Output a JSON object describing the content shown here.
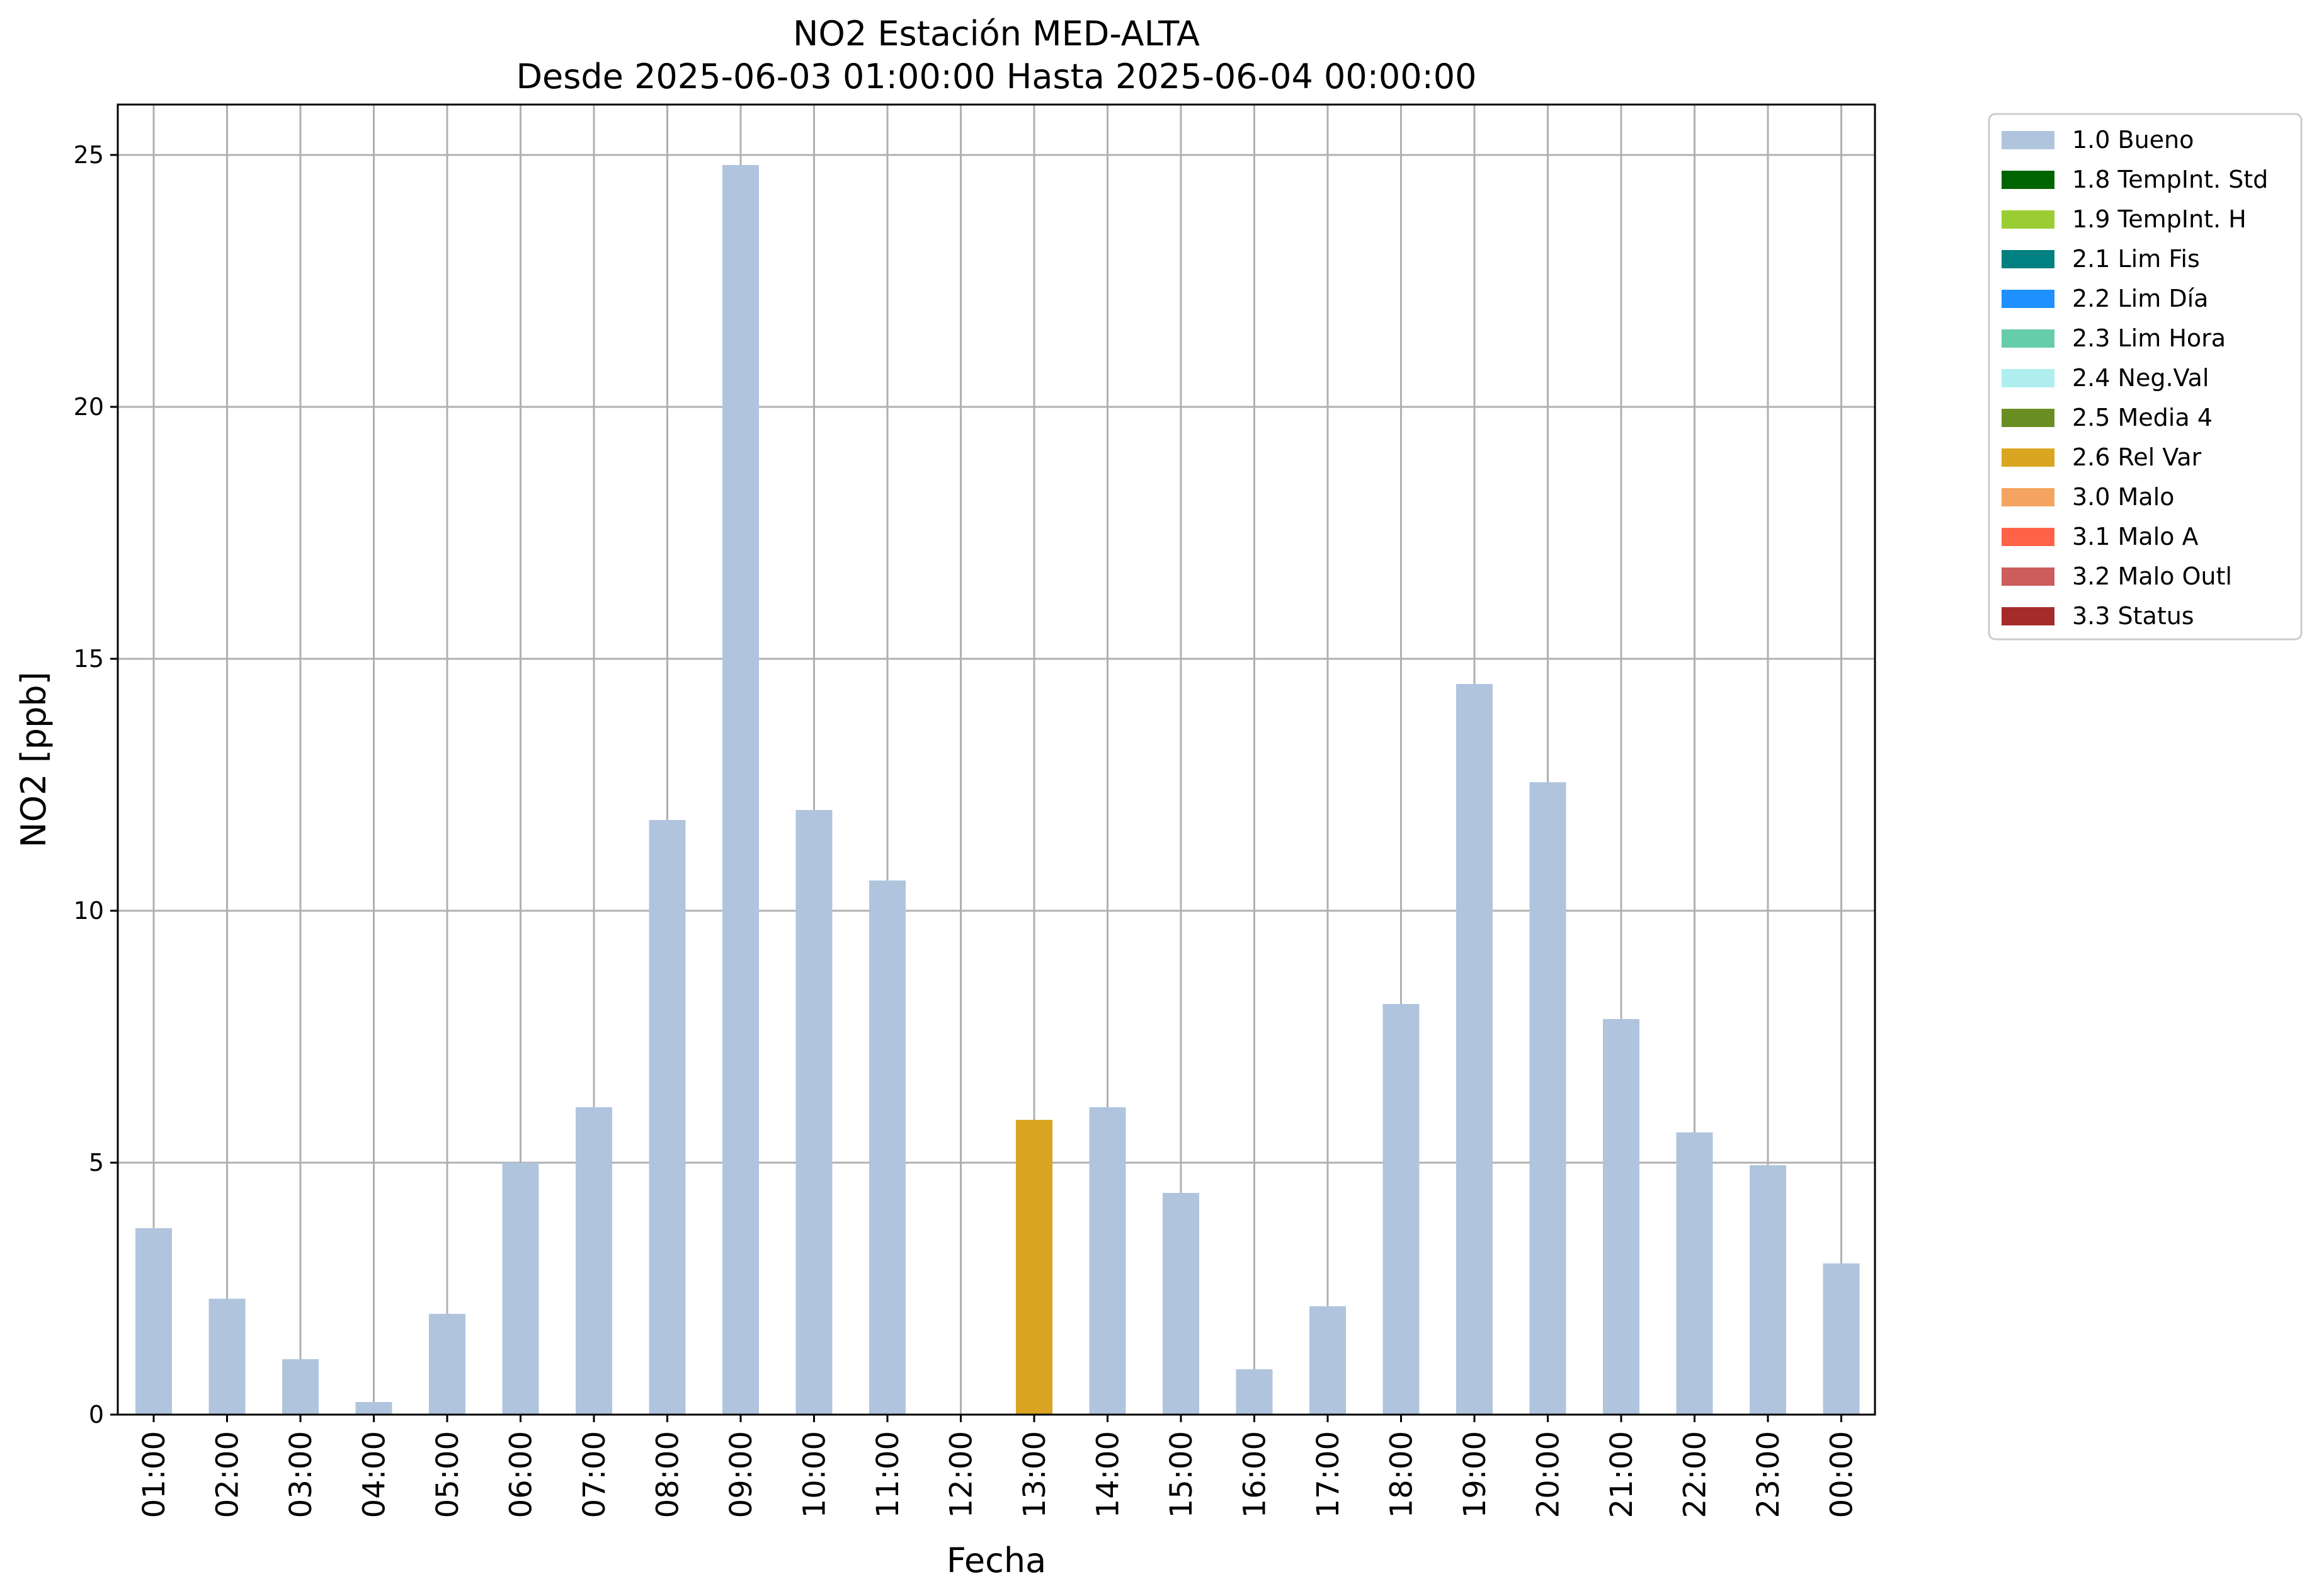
{
  "chart_data": {
    "type": "bar",
    "title": "NO2 Estación MED-ALTA",
    "subtitle": "Desde 2025-06-03 01:00:00 Hasta 2025-06-04 00:00:00",
    "xlabel": "Fecha",
    "ylabel": "NO2 [ppb]",
    "ylim": [
      0,
      26
    ],
    "yticks": [
      0,
      5,
      10,
      15,
      20,
      25
    ],
    "grid": true,
    "legend_position": "outside-right-top",
    "categories": [
      "01:00",
      "02:00",
      "03:00",
      "04:00",
      "05:00",
      "06:00",
      "07:00",
      "08:00",
      "09:00",
      "10:00",
      "11:00",
      "12:00",
      "13:00",
      "14:00",
      "15:00",
      "16:00",
      "17:00",
      "18:00",
      "19:00",
      "20:00",
      "21:00",
      "22:00",
      "23:00",
      "00:00"
    ],
    "values": [
      3.7,
      2.3,
      1.1,
      0.25,
      2.0,
      5.0,
      6.1,
      11.8,
      24.8,
      12.0,
      10.6,
      null,
      5.85,
      6.1,
      4.4,
      0.9,
      2.15,
      8.15,
      14.5,
      12.55,
      7.85,
      5.6,
      4.95,
      3.0
    ],
    "flags": [
      "1.0 Bueno",
      "1.0 Bueno",
      "1.0 Bueno",
      "1.0 Bueno",
      "1.0 Bueno",
      "1.0 Bueno",
      "1.0 Bueno",
      "1.0 Bueno",
      "1.0 Bueno",
      "1.0 Bueno",
      "1.0 Bueno",
      null,
      "2.6 Rel Var",
      "1.0 Bueno",
      "1.0 Bueno",
      "1.0 Bueno",
      "1.0 Bueno",
      "1.0 Bueno",
      "1.0 Bueno",
      "1.0 Bueno",
      "1.0 Bueno",
      "1.0 Bueno",
      "1.0 Bueno",
      "1.0 Bueno"
    ],
    "legend": [
      {
        "label": "1.0 Bueno",
        "color": "#b0c4de"
      },
      {
        "label": "1.8 TempInt. Std",
        "color": "#006400"
      },
      {
        "label": "1.9 TempInt. H",
        "color": "#9acd32"
      },
      {
        "label": "2.1 Lim Fis",
        "color": "#008080"
      },
      {
        "label": "2.2 Lim Día",
        "color": "#1e90ff"
      },
      {
        "label": "2.3 Lim Hora",
        "color": "#66cdaa"
      },
      {
        "label": "2.4 Neg.Val",
        "color": "#afeeee"
      },
      {
        "label": "2.5 Media 4",
        "color": "#6b8e23"
      },
      {
        "label": "2.6 Rel Var",
        "color": "#daa520"
      },
      {
        "label": "3.0 Malo",
        "color": "#f4a460"
      },
      {
        "label": "3.1 Malo A",
        "color": "#ff6347"
      },
      {
        "label": "3.2 Malo Outl",
        "color": "#cd5c5c"
      },
      {
        "label": "3.3 Status",
        "color": "#a52a2a"
      }
    ],
    "grid_color": "#b0b0b0"
  }
}
